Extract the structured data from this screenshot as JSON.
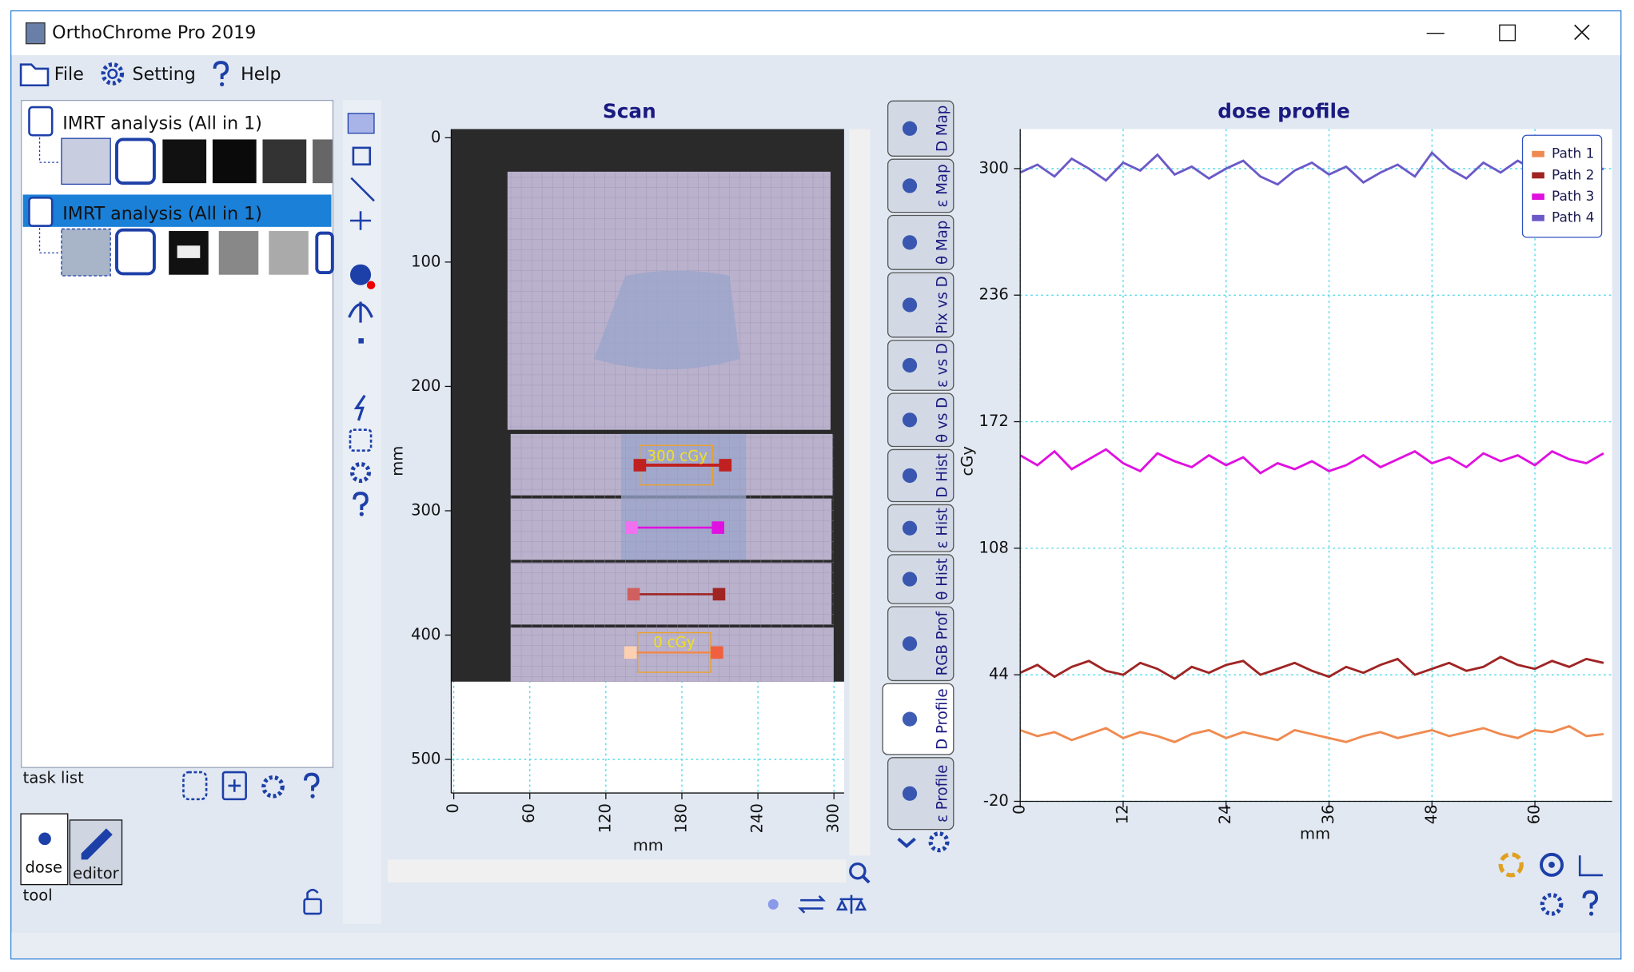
{
  "window": {
    "title": "OrthoChrome Pro 2019"
  },
  "menu": {
    "items": [
      "File",
      "Setting",
      "Help"
    ]
  },
  "task_list": {
    "items": [
      "IMRT analysis (All in 1)",
      "IMRT analysis (All in 1)"
    ],
    "label": "task list"
  },
  "tool": {
    "tabs": [
      "dose",
      "editor"
    ],
    "label": "tool"
  },
  "side_tabs": [
    "D Map",
    "ε Map",
    "θ Map",
    "Pix vs D",
    "ε vs D",
    "θ vs D",
    "D Hist",
    "ε Hist",
    "θ Hist",
    "RGB Prof",
    "D Profile",
    "ε Profile"
  ],
  "chart_data": [
    {
      "type": "image",
      "title": "Scan",
      "x_label": "mm",
      "y_label": "mm",
      "xlim": [
        -2,
        308
      ],
      "ylim": [
        527,
        -7
      ],
      "xticks": [
        0,
        60,
        120,
        180,
        240,
        300
      ],
      "yticks": [
        0,
        100,
        200,
        300,
        400,
        500
      ],
      "annotations": [
        "300 cGy",
        "0 cGy"
      ],
      "grid": true
    },
    {
      "type": "line",
      "title": "dose profile",
      "x_label": "mm",
      "y_label": "cGy",
      "xlim": [
        0,
        69
      ],
      "ylim": [
        -20,
        320
      ],
      "xticks": [
        0,
        12,
        24,
        36,
        48,
        60
      ],
      "yticks": [
        -20,
        44,
        108,
        172,
        236,
        300
      ],
      "grid": true,
      "legend": "top-right",
      "x": [
        0,
        2,
        4,
        6,
        8,
        10,
        12,
        14,
        16,
        18,
        20,
        22,
        24,
        26,
        28,
        30,
        32,
        34,
        36,
        38,
        40,
        42,
        44,
        46,
        48,
        50,
        52,
        54,
        56,
        58,
        60,
        62,
        64,
        66,
        68
      ],
      "series": [
        {
          "name": "Path 1",
          "color": "#f08a50",
          "values": [
            16,
            13,
            15,
            11,
            14,
            17,
            12,
            15,
            13,
            10,
            14,
            16,
            12,
            15,
            13,
            11,
            16,
            14,
            12,
            10,
            13,
            15,
            12,
            14,
            16,
            13,
            15,
            17,
            14,
            12,
            16,
            15,
            18,
            13,
            14
          ]
        },
        {
          "name": "Path 2",
          "color": "#a02424",
          "values": [
            45,
            49,
            43,
            48,
            51,
            46,
            44,
            50,
            47,
            42,
            48,
            45,
            49,
            51,
            44,
            47,
            50,
            46,
            43,
            48,
            45,
            49,
            52,
            44,
            47,
            50,
            46,
            48,
            53,
            49,
            47,
            51,
            48,
            52,
            50
          ]
        },
        {
          "name": "Path 3",
          "color": "#e010e0",
          "values": [
            155,
            150,
            157,
            148,
            153,
            158,
            151,
            147,
            156,
            152,
            149,
            155,
            150,
            154,
            146,
            151,
            148,
            152,
            147,
            150,
            155,
            149,
            153,
            157,
            151,
            154,
            149,
            156,
            152,
            155,
            150,
            157,
            153,
            151,
            156
          ]
        },
        {
          "name": "Path 4",
          "color": "#6a5ac8",
          "values": [
            298,
            302,
            296,
            305,
            300,
            294,
            303,
            299,
            307,
            297,
            301,
            295,
            300,
            304,
            296,
            292,
            299,
            303,
            297,
            301,
            293,
            298,
            302,
            296,
            308,
            300,
            295,
            303,
            298,
            304,
            299,
            301,
            305,
            297,
            300
          ]
        }
      ]
    }
  ]
}
